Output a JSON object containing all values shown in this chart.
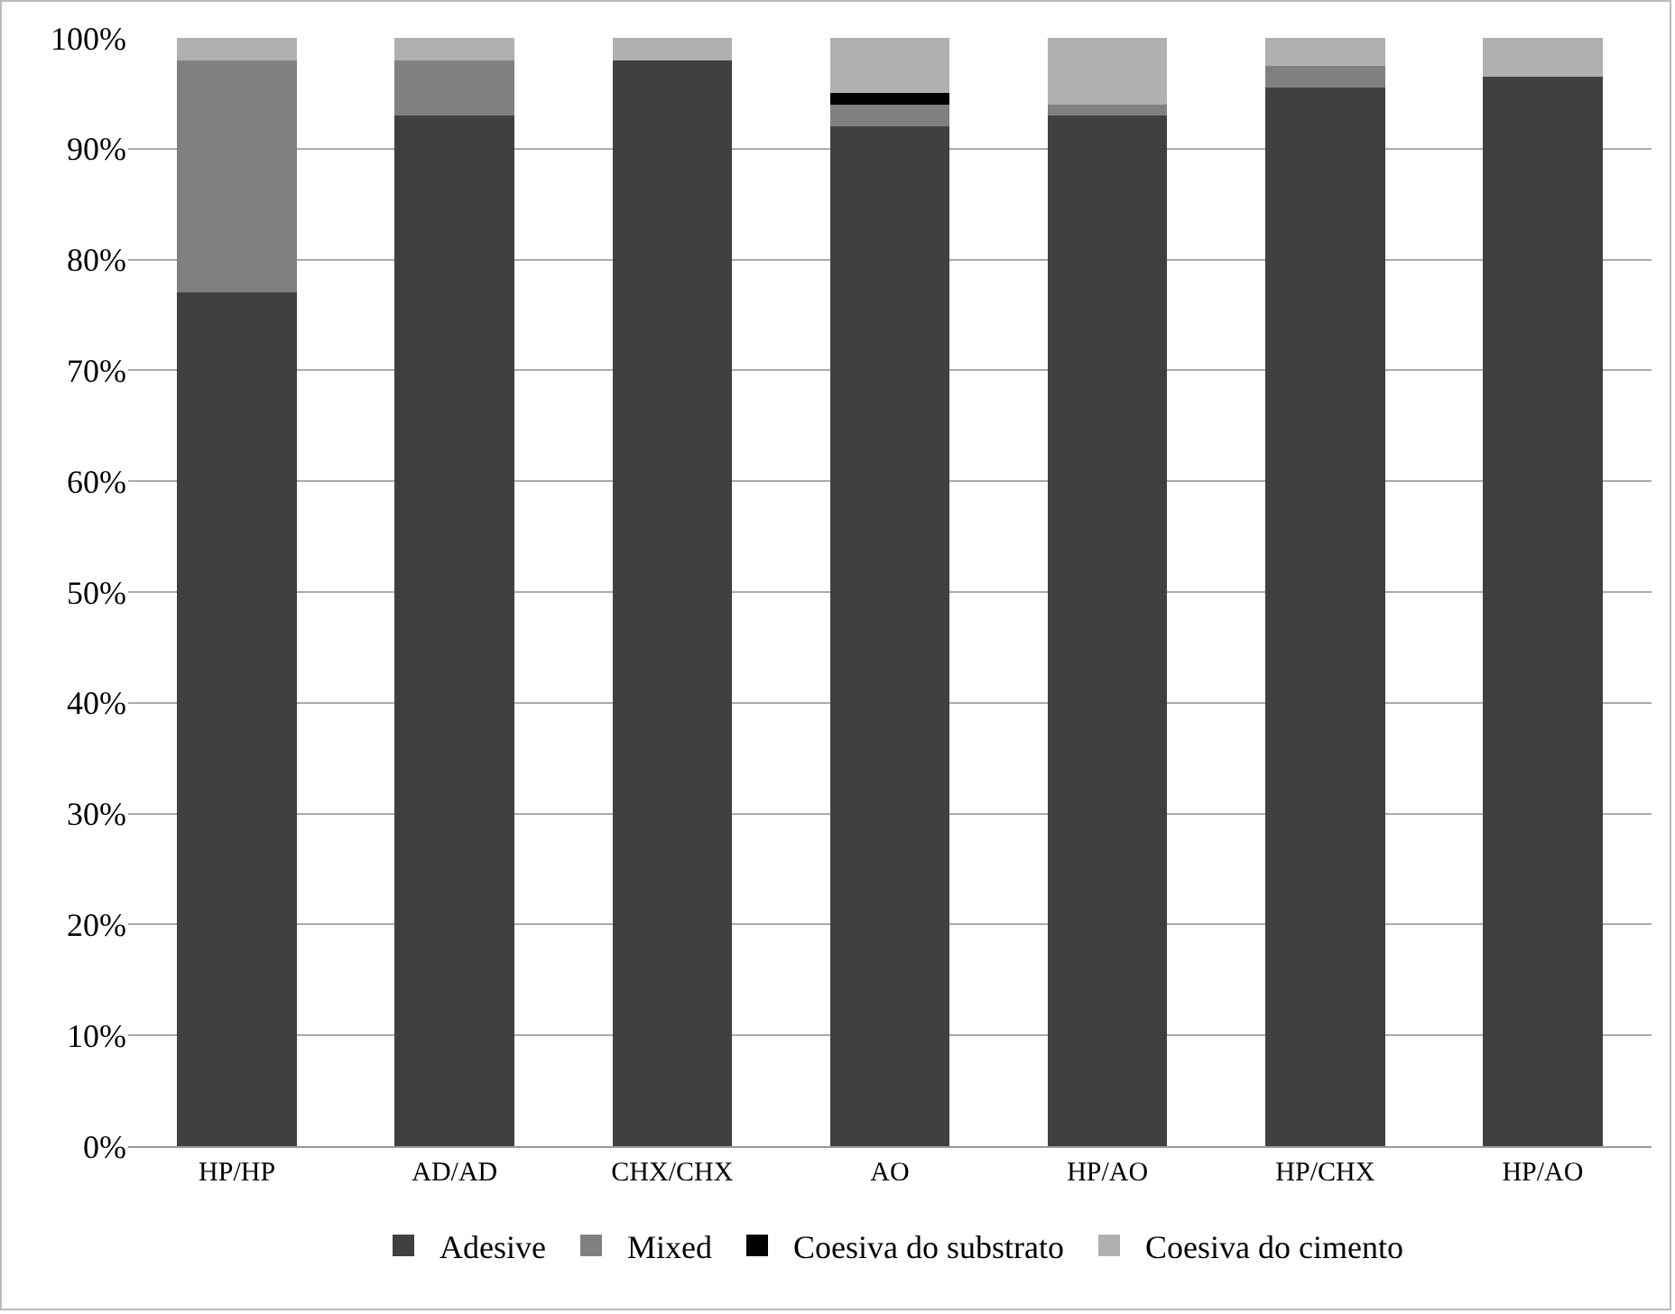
{
  "chart_data": {
    "type": "bar",
    "stacked": true,
    "categories": [
      "HP/HP",
      "AD/AD",
      "CHX/CHX",
      "AO",
      "HP/AO",
      "HP/CHX",
      "HP/AO"
    ],
    "series": [
      {
        "name": "Adesive",
        "color": "#404040",
        "values": [
          77,
          93,
          98,
          92,
          93,
          95.5,
          96.5
        ]
      },
      {
        "name": "Mixed",
        "color": "#808080",
        "values": [
          21,
          5,
          0,
          2,
          1,
          2,
          0
        ]
      },
      {
        "name": "Coesiva do substrato",
        "color": "#000000",
        "values": [
          0,
          0,
          0,
          1,
          0,
          0,
          0
        ]
      },
      {
        "name": "Coesiva do cimento",
        "color": "#b0b0b0",
        "values": [
          2,
          2,
          2,
          5,
          6,
          2.5,
          3.5
        ]
      }
    ],
    "ylim": [
      0,
      100
    ],
    "yticks": [
      {
        "value": 0,
        "label": "0%"
      },
      {
        "value": 10,
        "label": "10%"
      },
      {
        "value": 20,
        "label": "20%"
      },
      {
        "value": 30,
        "label": "30%"
      },
      {
        "value": 40,
        "label": "40%"
      },
      {
        "value": 50,
        "label": "50%"
      },
      {
        "value": 60,
        "label": "60%"
      },
      {
        "value": 70,
        "label": "70%"
      },
      {
        "value": 80,
        "label": "80%"
      },
      {
        "value": 90,
        "label": "90%"
      },
      {
        "value": 100,
        "label": "100%"
      }
    ],
    "grid": "y",
    "legend": "bottom"
  }
}
